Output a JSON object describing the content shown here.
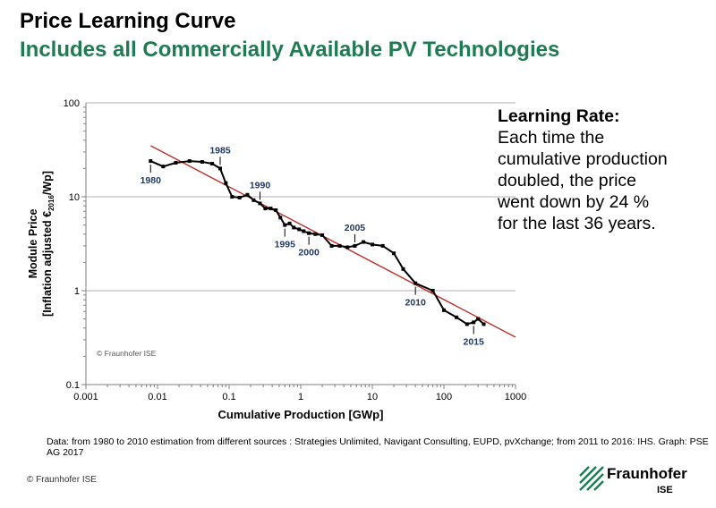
{
  "slide": {
    "title": "Price Learning Curve",
    "subtitle": "Includes all Commercially Available PV Technologies",
    "note": {
      "heading": "Learning Rate:",
      "lines": [
        "Each time the",
        "cumulative production",
        "doubled, the price",
        "went down by 24 %",
        "for the last 36 years."
      ]
    },
    "source": "Data: from 1980 to 2010 estimation from different sources : Strategies Unlimited, Navigant Consulting, EUPD, pvXchange; from 2011 to 2016: IHS. Graph: PSE AG 2017",
    "footer_copyright": "© Fraunhofer ISE",
    "logo": {
      "name": "Fraunhofer",
      "sub": "ISE"
    }
  },
  "colors": {
    "title": "#000000",
    "subtitle": "#1e7b52",
    "data_line": "#000000",
    "trend_line": "#c0302a",
    "year_label": "#1f3864",
    "grid": "#b0b0b0",
    "logo_green": "#1e7b52"
  },
  "chart_data": {
    "type": "line",
    "xlabel": "Cumulative Production [GWp]",
    "ylabel_line1": "Module Price",
    "ylabel_line2_pre": "[Inflation adjusted €",
    "ylabel_sub": "2016",
    "ylabel_line2_post": "/Wp]",
    "x_scale": "log",
    "y_scale": "log",
    "xlim": [
      0.001,
      1000
    ],
    "ylim": [
      0.1,
      100
    ],
    "x_ticks": [
      0.001,
      0.01,
      0.1,
      1,
      10,
      100,
      1000
    ],
    "x_tick_labels": [
      "0.001",
      "0.01",
      "0.1",
      "1",
      "10",
      "100",
      "1000"
    ],
    "y_ticks": [
      0.1,
      1,
      10,
      100
    ],
    "y_tick_labels": [
      "0.1",
      "1",
      "10",
      "100"
    ],
    "grid": "horizontal",
    "watermark": "© Fraunhofer ISE",
    "series": [
      {
        "x": [
          0.008,
          0.012,
          0.018,
          0.028,
          0.042,
          0.058,
          0.075,
          0.09,
          0.11,
          0.14,
          0.18,
          0.22,
          0.27,
          0.32,
          0.38,
          0.45,
          0.52,
          0.6,
          0.7,
          0.8,
          0.95,
          1.1,
          1.3,
          1.6,
          2.0,
          2.7,
          3.5,
          4.5,
          5.7,
          7.5,
          10,
          14,
          20,
          27,
          40,
          70,
          100,
          150,
          210,
          260,
          300,
          360
        ],
        "y": [
          24,
          21,
          23,
          24,
          23.5,
          22.5,
          20,
          14,
          10,
          9.8,
          10.5,
          9.2,
          8.5,
          7.5,
          7.5,
          7.2,
          6.0,
          5.0,
          5.2,
          4.7,
          4.5,
          4.3,
          4.1,
          4.0,
          3.9,
          3.0,
          3.0,
          2.9,
          3.0,
          3.3,
          3.1,
          3.0,
          2.5,
          1.7,
          1.2,
          1.0,
          0.62,
          0.52,
          0.44,
          0.46,
          0.5,
          0.44
        ]
      },
      {
        "x": [
          0.008,
          1000
        ],
        "y": [
          35,
          0.32
        ]
      }
    ],
    "annotations": [
      {
        "text": "1980",
        "x": 0.008,
        "y": 24,
        "pos": "below"
      },
      {
        "text": "1985",
        "x": 0.075,
        "y": 20,
        "pos": "above"
      },
      {
        "text": "1990",
        "x": 0.27,
        "y": 8.5,
        "pos": "above"
      },
      {
        "text": "1995",
        "x": 0.6,
        "y": 5.0,
        "pos": "below"
      },
      {
        "text": "2000",
        "x": 1.3,
        "y": 4.1,
        "pos": "below"
      },
      {
        "text": "2005",
        "x": 5.7,
        "y": 3.0,
        "pos": "above"
      },
      {
        "text": "2010",
        "x": 40,
        "y": 1.2,
        "pos": "below"
      },
      {
        "text": "2015",
        "x": 260,
        "y": 0.46,
        "pos": "below"
      }
    ]
  }
}
